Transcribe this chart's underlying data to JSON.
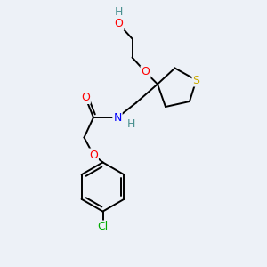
{
  "background_color": "#edf1f7",
  "atom_colors": {
    "C": "#000000",
    "H": "#4a9090",
    "O": "#ff0000",
    "N": "#0000ff",
    "S": "#ccaa00",
    "Cl": "#00aa00"
  },
  "figsize": [
    3.0,
    3.0
  ],
  "dpi": 100,
  "line_width": 1.4,
  "font_size": 9.0
}
